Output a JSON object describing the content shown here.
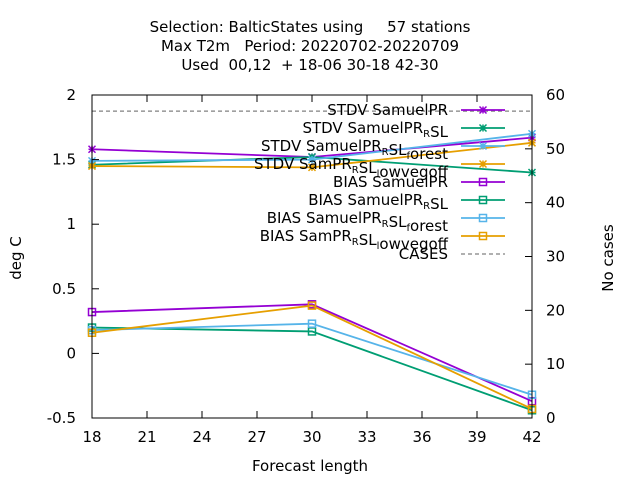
{
  "chart_data": {
    "type": "line",
    "title_lines": [
      "Selection: BalticStates using     57 stations",
      "Max T2m   Period: 20220702-20220709",
      "Used  00,12  + 18-06 30-18 42-30"
    ],
    "xlabel": "Forecast length",
    "ylabel": "deg C",
    "y2label": "No cases",
    "x": [
      18,
      30,
      42
    ],
    "xlim": [
      18,
      42
    ],
    "ylim": [
      -0.5,
      2
    ],
    "y2lim": [
      0,
      60
    ],
    "xticks": [
      "18",
      "21",
      "24",
      "27",
      "30",
      "33",
      "36",
      "39",
      "42"
    ],
    "yticks": [
      "-0.5",
      "0",
      "0.5",
      "1",
      "1.5",
      "2"
    ],
    "y2ticks": [
      "0",
      "10",
      "20",
      "30",
      "40",
      "50",
      "60"
    ],
    "legend_position": "top-right",
    "grid": false,
    "series": [
      {
        "name": "STDV SamuelPR",
        "legend_parts": [
          [
            "STDV SamuelPR",
            "n"
          ]
        ],
        "color": "#9400d3",
        "marker": "star",
        "dash": "",
        "axis": "y1",
        "values": [
          1.58,
          1.52,
          1.67
        ]
      },
      {
        "name": "STDV SamuelPR_R SL",
        "legend_parts": [
          [
            "STDV SamuelPR",
            "n"
          ],
          [
            "R",
            "sub"
          ],
          [
            "SL",
            "n"
          ]
        ],
        "color": "#009e73",
        "marker": "star",
        "dash": "",
        "axis": "y1",
        "values": [
          1.46,
          1.52,
          1.4
        ]
      },
      {
        "name": "STDV SamuelPR_R SL_forest",
        "legend_parts": [
          [
            "STDV SamuelPR",
            "n"
          ],
          [
            "R",
            "sub"
          ],
          [
            "SL",
            "n"
          ],
          [
            "f",
            "sub"
          ],
          [
            "orest",
            "n"
          ]
        ],
        "color": "#56b4e9",
        "marker": "star",
        "dash": "",
        "axis": "y1",
        "values": [
          1.49,
          1.5,
          1.7
        ]
      },
      {
        "name": "STDV SamPR_R SL_lowvegoff",
        "legend_parts": [
          [
            "STDV SamPR",
            "n"
          ],
          [
            "R",
            "sub"
          ],
          [
            "SL",
            "n"
          ],
          [
            "l",
            "sub"
          ],
          [
            "owvegoff",
            "n"
          ]
        ],
        "color": "#e69f00",
        "marker": "star",
        "dash": "",
        "axis": "y1",
        "values": [
          1.45,
          1.44,
          1.63
        ]
      },
      {
        "name": "BIAS SamuelPR",
        "legend_parts": [
          [
            "BIAS SamuelPR",
            "n"
          ]
        ],
        "color": "#9400d3",
        "marker": "square",
        "dash": "",
        "axis": "y1",
        "values": [
          0.32,
          0.38,
          -0.37
        ]
      },
      {
        "name": "BIAS SamuelPR_R SL",
        "legend_parts": [
          [
            "BIAS SamuelPR",
            "n"
          ],
          [
            "R",
            "sub"
          ],
          [
            "SL",
            "n"
          ]
        ],
        "color": "#009e73",
        "marker": "square",
        "dash": "",
        "axis": "y1",
        "values": [
          0.2,
          0.17,
          -0.44
        ]
      },
      {
        "name": "BIAS SamuelPR_R SL_forest",
        "legend_parts": [
          [
            "BIAS SamuelPR",
            "n"
          ],
          [
            "R",
            "sub"
          ],
          [
            "SL",
            "n"
          ],
          [
            "f",
            "sub"
          ],
          [
            "orest",
            "n"
          ]
        ],
        "color": "#56b4e9",
        "marker": "square",
        "dash": "",
        "axis": "y1",
        "values": [
          0.18,
          0.23,
          -0.32
        ]
      },
      {
        "name": "BIAS SamPR_R SL_lowvegoff",
        "legend_parts": [
          [
            "BIAS SamPR",
            "n"
          ],
          [
            "R",
            "sub"
          ],
          [
            "SL",
            "n"
          ],
          [
            "l",
            "sub"
          ],
          [
            "owvegoff",
            "n"
          ]
        ],
        "color": "#e69f00",
        "marker": "square",
        "dash": "",
        "axis": "y1",
        "values": [
          0.16,
          0.37,
          -0.43
        ]
      },
      {
        "name": "CASES",
        "legend_parts": [
          [
            "CASES",
            "n"
          ]
        ],
        "color": "#808080",
        "marker": "none",
        "dash": "4,3",
        "axis": "y2",
        "values": [
          57,
          57,
          57
        ]
      }
    ]
  }
}
